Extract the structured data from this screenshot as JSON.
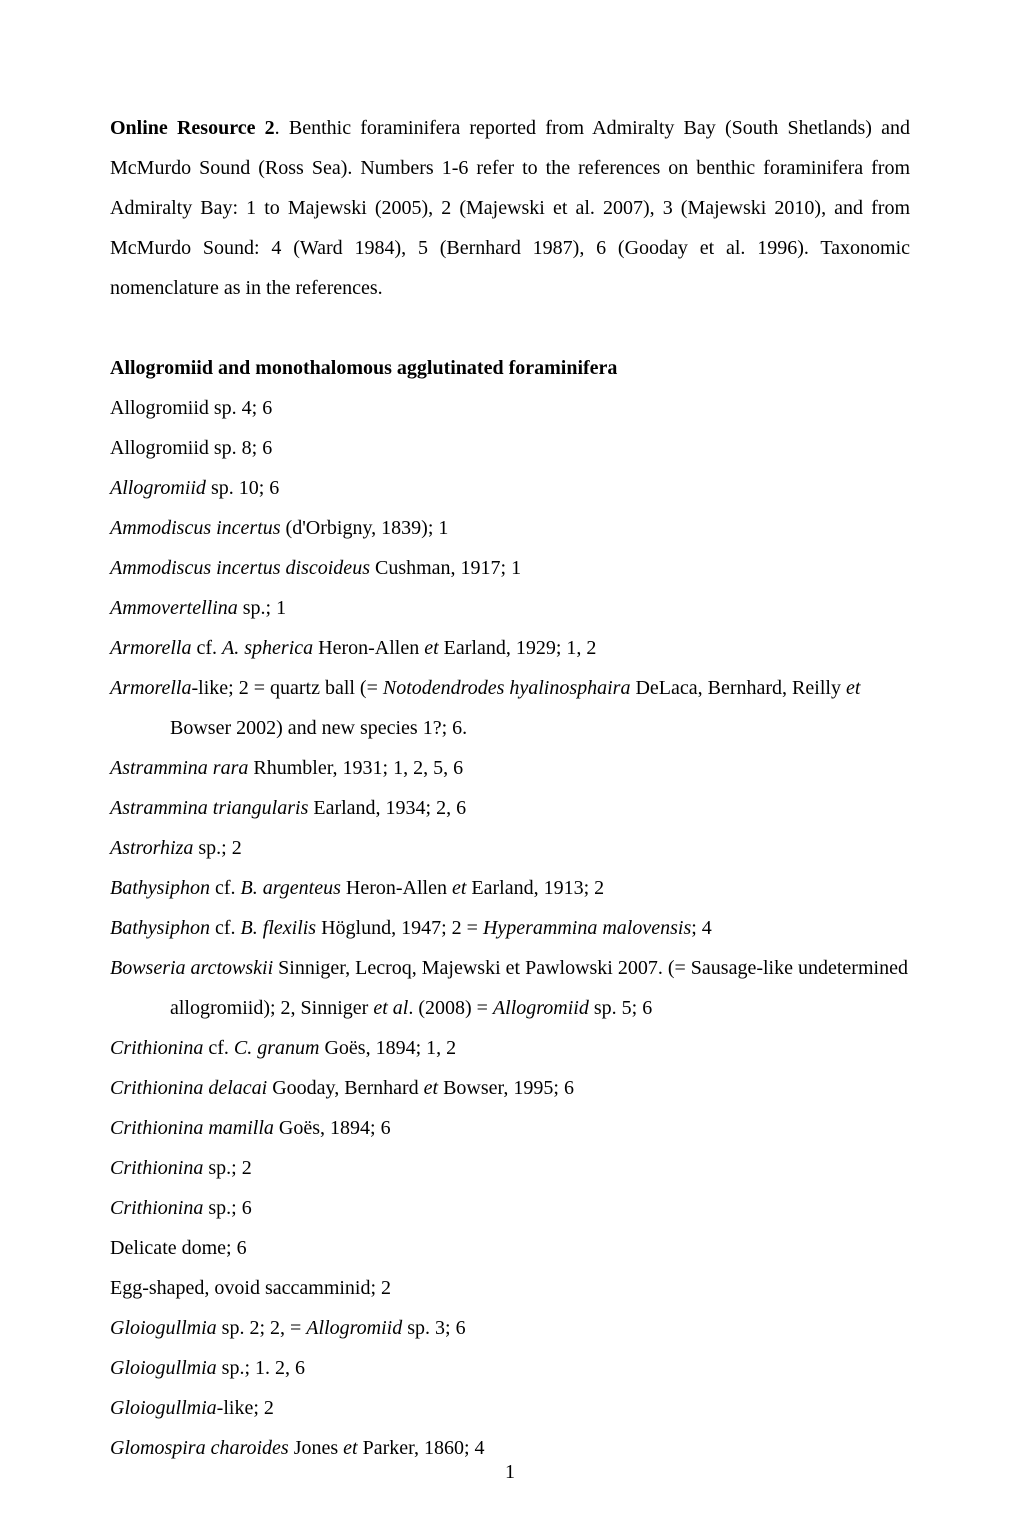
{
  "intro": {
    "lead_bold": "Online Resource 2",
    "lead_rest": ". Benthic foraminifera reported from Admiralty Bay (South Shetlands) and McMurdo Sound (Ross Sea). Numbers 1-6 refer to the references on benthic foraminifera from Admiralty Bay: 1 to Majewski (2005), 2 (Majewski et al. 2007), 3 (Majewski 2010), and from McMurdo Sound: 4 (Ward 1984), 5 (Bernhard 1987), 6 (Gooday et al. 1996). Taxonomic nomenclature as in the references."
  },
  "section_title": "Allogromiid and monothalomous agglutinated foraminifera",
  "entries": [
    {
      "segments": [
        {
          "t": "Allogromiid sp. 4; 6"
        }
      ]
    },
    {
      "segments": [
        {
          "t": "Allogromiid sp. 8; 6"
        }
      ]
    },
    {
      "segments": [
        {
          "t": "Allogromiid",
          "i": true
        },
        {
          "t": " sp. 10; 6"
        }
      ]
    },
    {
      "segments": [
        {
          "t": "Ammodiscus incertus",
          "i": true
        },
        {
          "t": " (d'Orbigny, 1839); 1"
        }
      ]
    },
    {
      "segments": [
        {
          "t": "Ammodiscus incertus discoideus",
          "i": true
        },
        {
          "t": " Cushman, 1917; 1"
        }
      ]
    },
    {
      "segments": [
        {
          "t": "Ammovertellina",
          "i": true
        },
        {
          "t": " sp.; 1"
        }
      ]
    },
    {
      "segments": [
        {
          "t": "Armorella",
          "i": true
        },
        {
          "t": " cf. "
        },
        {
          "t": "A. spherica",
          "i": true
        },
        {
          "t": " Heron-Allen "
        },
        {
          "t": "et",
          "i": true
        },
        {
          "t": " Earland, 1929; 1, 2"
        }
      ]
    },
    {
      "segments": [
        {
          "t": "Armorella",
          "i": true
        },
        {
          "t": "-like; 2 = quartz ball (= "
        },
        {
          "t": "Notodendrodes hyalinosphaira",
          "i": true
        },
        {
          "t": " DeLaca, Bernhard, Reilly "
        },
        {
          "t": "et",
          "i": true
        },
        {
          "t": " Bowser 2002) and new species 1?; 6."
        }
      ]
    },
    {
      "segments": [
        {
          "t": "Astrammina rara",
          "i": true
        },
        {
          "t": " Rhumbler, 1931; 1, 2, 5, 6"
        }
      ]
    },
    {
      "segments": [
        {
          "t": "Astrammina triangularis",
          "i": true
        },
        {
          "t": " Earland, 1934; 2, 6"
        }
      ]
    },
    {
      "segments": [
        {
          "t": "Astrorhiza",
          "i": true
        },
        {
          "t": " sp.; 2"
        }
      ]
    },
    {
      "segments": [
        {
          "t": "Bathysiphon",
          "i": true
        },
        {
          "t": " cf. "
        },
        {
          "t": "B. argenteus",
          "i": true
        },
        {
          "t": " Heron-Allen "
        },
        {
          "t": "et",
          "i": true
        },
        {
          "t": " Earland, 1913; 2"
        }
      ]
    },
    {
      "segments": [
        {
          "t": "Bathysiphon",
          "i": true
        },
        {
          "t": " cf. "
        },
        {
          "t": "B. flexilis",
          "i": true
        },
        {
          "t": " Höglund, 1947; 2 = "
        },
        {
          "t": "Hyperammina malovensis",
          "i": true
        },
        {
          "t": "; 4"
        }
      ]
    },
    {
      "segments": [
        {
          "t": "Bowseria arctowskii",
          "i": true
        },
        {
          "t": " Sinniger, Lecroq, Majewski et Pawlowski 2007. (= Sausage-like undetermined allogromiid); 2, Sinniger "
        },
        {
          "t": "et al",
          "i": true
        },
        {
          "t": ". (2008) = "
        },
        {
          "t": "Allogromiid",
          "i": true
        },
        {
          "t": " sp. 5; 6"
        }
      ]
    },
    {
      "segments": [
        {
          "t": "Crithionina",
          "i": true
        },
        {
          "t": " cf. "
        },
        {
          "t": "C. granum",
          "i": true
        },
        {
          "t": " Goës, 1894; 1, 2"
        }
      ]
    },
    {
      "segments": [
        {
          "t": "Crithionina delacai",
          "i": true
        },
        {
          "t": " Gooday, Bernhard "
        },
        {
          "t": "et",
          "i": true
        },
        {
          "t": " Bowser, 1995; 6"
        }
      ]
    },
    {
      "segments": [
        {
          "t": "Crithionina mamilla",
          "i": true
        },
        {
          "t": " Goës, 1894; 6"
        }
      ]
    },
    {
      "segments": [
        {
          "t": "Crithionina",
          "i": true
        },
        {
          "t": " sp.; 2"
        }
      ]
    },
    {
      "segments": [
        {
          "t": "Crithionina",
          "i": true
        },
        {
          "t": " sp.; 6"
        }
      ]
    },
    {
      "segments": [
        {
          "t": "Delicate dome; 6"
        }
      ]
    },
    {
      "segments": [
        {
          "t": "Egg-shaped, ovoid saccamminid; 2"
        }
      ]
    },
    {
      "segments": [
        {
          "t": "Gloiogullmia",
          "i": true
        },
        {
          "t": " sp. 2; 2, = "
        },
        {
          "t": "Allogromiid",
          "i": true
        },
        {
          "t": " sp. 3; 6"
        }
      ]
    },
    {
      "segments": [
        {
          "t": "Gloiogullmia",
          "i": true
        },
        {
          "t": " sp.; 1. 2, 6"
        }
      ]
    },
    {
      "segments": [
        {
          "t": "Gloiogullmia",
          "i": true
        },
        {
          "t": "-like; 2"
        }
      ]
    },
    {
      "segments": [
        {
          "t": "Glomospira charoides",
          "i": true
        },
        {
          "t": " Jones "
        },
        {
          "t": "et",
          "i": true
        },
        {
          "t": " Parker, 1860; 4"
        }
      ]
    }
  ],
  "page_number": "1"
}
